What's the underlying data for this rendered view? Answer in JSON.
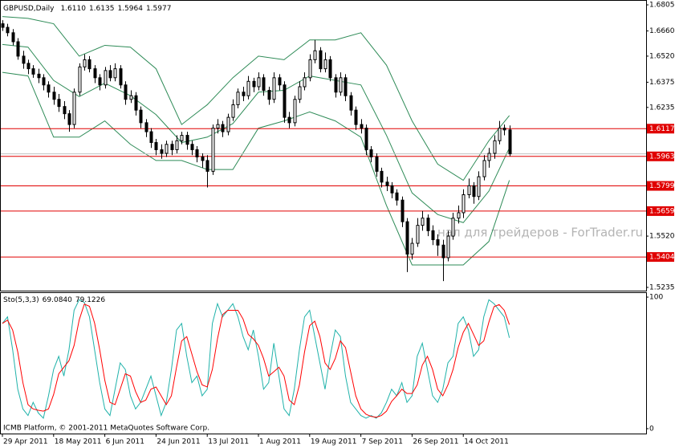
{
  "chart_data": {
    "type": "candlestick",
    "title": "GBPUSD,Daily",
    "last_bar_labels": [
      "1.6110",
      "1.6135",
      "1.5964",
      "1.5977"
    ],
    "bull_color": "#ffffff",
    "bear_color": "#000000",
    "outline_color": "#000000",
    "bid_line_color": "#c0c0c0",
    "xlim": [
      -0.47,
      125.7
    ],
    "xticks": [
      {
        "value": 0,
        "label": "29 Apr 2011"
      },
      {
        "value": 10,
        "label": "18 May 2011"
      },
      {
        "value": 20,
        "label": "6 Jun 2011"
      },
      {
        "value": 30,
        "label": "24 Jun 2011"
      },
      {
        "value": 40,
        "label": "13 Jul 2011"
      },
      {
        "value": 50,
        "label": "1 Aug 2011"
      },
      {
        "value": 60,
        "label": "19 Aug 2011"
      },
      {
        "value": 70,
        "label": "7 Sep 2011"
      },
      {
        "value": 80,
        "label": "26 Sep 2011"
      },
      {
        "value": 90,
        "label": "14 Oct 2011"
      }
    ],
    "ylim": [
      1.5217,
      1.6823
    ],
    "yticks": [
      {
        "value": 1.6805,
        "label": "1.6805"
      },
      {
        "value": 1.666,
        "label": "1.6660"
      },
      {
        "value": 1.652,
        "label": "1.6520"
      },
      {
        "value": 1.6375,
        "label": "1.6375"
      },
      {
        "value": 1.6235,
        "label": "1.6235"
      },
      {
        "value": 1.552,
        "label": "1.5520"
      },
      {
        "value": 1.5235,
        "label": "1.5235"
      }
    ],
    "levels": {
      "color": "#e00000",
      "label_text_color": "#ffffff",
      "items": [
        {
          "value": 1.6117,
          "label": "1.6117"
        },
        {
          "value": 1.5963,
          "label": "1.5963"
        },
        {
          "value": 1.5799,
          "label": "1.5799"
        },
        {
          "value": 1.5659,
          "label": "1.5659"
        },
        {
          "value": 1.5404,
          "label": "1.5404"
        }
      ]
    },
    "candles": [
      [
        1.67,
        1.672,
        1.666,
        1.668
      ],
      [
        1.668,
        1.67,
        1.663,
        1.665
      ],
      [
        1.665,
        1.667,
        1.658,
        1.66
      ],
      [
        1.66,
        1.662,
        1.65,
        1.652
      ],
      [
        1.652,
        1.655,
        1.645,
        1.648
      ],
      [
        1.648,
        1.65,
        1.642,
        1.645
      ],
      [
        1.645,
        1.647,
        1.64,
        1.642
      ],
      [
        1.642,
        1.645,
        1.637,
        1.64
      ],
      [
        1.64,
        1.642,
        1.633,
        1.636
      ],
      [
        1.636,
        1.638,
        1.629,
        1.632
      ],
      [
        1.632,
        1.635,
        1.625,
        1.628
      ],
      [
        1.628,
        1.631,
        1.621,
        1.624
      ],
      [
        1.624,
        1.627,
        1.617,
        1.62
      ],
      [
        1.62,
        1.622,
        1.61,
        1.614
      ],
      [
        1.614,
        1.634,
        1.612,
        1.632
      ],
      [
        1.632,
        1.648,
        1.63,
        1.646
      ],
      [
        1.646,
        1.653,
        1.644,
        1.65
      ],
      [
        1.65,
        1.652,
        1.643,
        1.645
      ],
      [
        1.645,
        1.647,
        1.637,
        1.64
      ],
      [
        1.64,
        1.642,
        1.633,
        1.636
      ],
      [
        1.636,
        1.646,
        1.634,
        1.644
      ],
      [
        1.644,
        1.647,
        1.638,
        1.64
      ],
      [
        1.64,
        1.648,
        1.638,
        1.645
      ],
      [
        1.645,
        1.647,
        1.634,
        1.636
      ],
      [
        1.636,
        1.638,
        1.625,
        1.628
      ],
      [
        1.628,
        1.633,
        1.626,
        1.63
      ],
      [
        1.63,
        1.632,
        1.619,
        1.622
      ],
      [
        1.622,
        1.624,
        1.612,
        1.615
      ],
      [
        1.615,
        1.617,
        1.607,
        1.61
      ],
      [
        1.61,
        1.612,
        1.601,
        1.604
      ],
      [
        1.604,
        1.606,
        1.597,
        1.6
      ],
      [
        1.6,
        1.603,
        1.595,
        1.598
      ],
      [
        1.598,
        1.605,
        1.596,
        1.603
      ],
      [
        1.603,
        1.605,
        1.597,
        1.6
      ],
      [
        1.6,
        1.608,
        1.598,
        1.605
      ],
      [
        1.605,
        1.61,
        1.603,
        1.608
      ],
      [
        1.608,
        1.61,
        1.6,
        1.603
      ],
      [
        1.603,
        1.605,
        1.597,
        1.6
      ],
      [
        1.6,
        1.602,
        1.593,
        1.596
      ],
      [
        1.596,
        1.598,
        1.59,
        1.594
      ],
      [
        1.594,
        1.597,
        1.579,
        1.588
      ],
      [
        1.588,
        1.614,
        1.586,
        1.612
      ],
      [
        1.612,
        1.617,
        1.609,
        1.614
      ],
      [
        1.614,
        1.616,
        1.607,
        1.61
      ],
      [
        1.61,
        1.62,
        1.608,
        1.618
      ],
      [
        1.618,
        1.628,
        1.616,
        1.625
      ],
      [
        1.625,
        1.634,
        1.623,
        1.632
      ],
      [
        1.632,
        1.635,
        1.627,
        1.63
      ],
      [
        1.63,
        1.641,
        1.628,
        1.638
      ],
      [
        1.638,
        1.64,
        1.632,
        1.635
      ],
      [
        1.635,
        1.643,
        1.633,
        1.64
      ],
      [
        1.64,
        1.642,
        1.63,
        1.633
      ],
      [
        1.633,
        1.635,
        1.625,
        1.628
      ],
      [
        1.628,
        1.643,
        1.626,
        1.64
      ],
      [
        1.64,
        1.642,
        1.633,
        1.636
      ],
      [
        1.636,
        1.638,
        1.615,
        1.618
      ],
      [
        1.618,
        1.621,
        1.612,
        1.615
      ],
      [
        1.615,
        1.63,
        1.613,
        1.628
      ],
      [
        1.628,
        1.638,
        1.626,
        1.635
      ],
      [
        1.635,
        1.643,
        1.633,
        1.64
      ],
      [
        1.64,
        1.653,
        1.638,
        1.65
      ],
      [
        1.65,
        1.661,
        1.648,
        1.655
      ],
      [
        1.655,
        1.657,
        1.643,
        1.645
      ],
      [
        1.645,
        1.654,
        1.643,
        1.65
      ],
      [
        1.65,
        1.652,
        1.638,
        1.64
      ],
      [
        1.64,
        1.642,
        1.629,
        1.632
      ],
      [
        1.632,
        1.643,
        1.63,
        1.64
      ],
      [
        1.64,
        1.642,
        1.627,
        1.63
      ],
      [
        1.63,
        1.632,
        1.619,
        1.622
      ],
      [
        1.622,
        1.624,
        1.611,
        1.614
      ],
      [
        1.614,
        1.617,
        1.609,
        1.612
      ],
      [
        1.612,
        1.614,
        1.597,
        1.6
      ],
      [
        1.6,
        1.602,
        1.593,
        1.596
      ],
      [
        1.596,
        1.598,
        1.585,
        1.588
      ],
      [
        1.588,
        1.59,
        1.579,
        1.582
      ],
      [
        1.582,
        1.585,
        1.577,
        1.58
      ],
      [
        1.58,
        1.582,
        1.573,
        1.576
      ],
      [
        1.576,
        1.578,
        1.569,
        1.572
      ],
      [
        1.572,
        1.574,
        1.557,
        1.56
      ],
      [
        1.56,
        1.562,
        1.532,
        1.542
      ],
      [
        1.542,
        1.551,
        1.539,
        1.548
      ],
      [
        1.548,
        1.562,
        1.546,
        1.558
      ],
      [
        1.558,
        1.566,
        1.555,
        1.562
      ],
      [
        1.562,
        1.564,
        1.552,
        1.555
      ],
      [
        1.555,
        1.558,
        1.547,
        1.55
      ],
      [
        1.55,
        1.553,
        1.541,
        1.547
      ],
      [
        1.547,
        1.55,
        1.527,
        1.54
      ],
      [
        1.54,
        1.555,
        1.538,
        1.552
      ],
      [
        1.552,
        1.565,
        1.55,
        1.562
      ],
      [
        1.562,
        1.569,
        1.559,
        1.565
      ],
      [
        1.565,
        1.578,
        1.562,
        1.575
      ],
      [
        1.575,
        1.584,
        1.573,
        1.58
      ],
      [
        1.58,
        1.582,
        1.57,
        1.574
      ],
      [
        1.574,
        1.588,
        1.572,
        1.585
      ],
      [
        1.585,
        1.597,
        1.583,
        1.594
      ],
      [
        1.594,
        1.601,
        1.59,
        1.598
      ],
      [
        1.598,
        1.608,
        1.595,
        1.605
      ],
      [
        1.605,
        1.616,
        1.603,
        1.612
      ],
      [
        1.612,
        1.614,
        1.608,
        1.611
      ],
      [
        1.611,
        1.6135,
        1.5964,
        1.5977
      ]
    ],
    "bands": {
      "color": "#2e8b57",
      "x": [
        0,
        5,
        10,
        15,
        20,
        25,
        30,
        35,
        40,
        45,
        50,
        55,
        60,
        65,
        70,
        75,
        80,
        85,
        90,
        95,
        99
      ],
      "upper": [
        1.674,
        1.673,
        1.67,
        1.652,
        1.658,
        1.657,
        1.645,
        1.614,
        1.625,
        1.64,
        1.652,
        1.65,
        1.661,
        1.661,
        1.665,
        1.647,
        1.616,
        1.592,
        1.583,
        1.605,
        1.619
      ],
      "middle": [
        1.6585,
        1.657,
        1.6385,
        1.6295,
        1.637,
        1.63,
        1.6195,
        1.604,
        1.607,
        1.6145,
        1.632,
        1.633,
        1.641,
        1.6385,
        1.636,
        1.608,
        1.576,
        1.564,
        1.5595,
        1.577,
        1.601
      ],
      "lower": [
        1.643,
        1.641,
        1.607,
        1.607,
        1.616,
        1.603,
        1.594,
        1.594,
        1.589,
        1.589,
        1.612,
        1.616,
        1.621,
        1.616,
        1.607,
        1.569,
        1.536,
        1.536,
        1.536,
        1.549,
        1.583
      ]
    },
    "watermark": "нал для трейдеров - ForTrader.ru",
    "footer": "ICMB Platform, © 2001-2011 MetaQuotes Software Corp.",
    "stochastic": {
      "type": "line",
      "title": "Sto(5,3,3)",
      "ylim": [
        -3.7,
        103.7
      ],
      "yticks": [
        0,
        100
      ],
      "k": {
        "color": "#20b2aa",
        "last_label": "69.0840",
        "values": [
          80,
          85,
          60,
          30,
          15,
          10,
          20,
          12,
          8,
          25,
          45,
          55,
          40,
          60,
          90,
          98,
          96,
          85,
          60,
          35,
          15,
          10,
          30,
          50,
          45,
          25,
          15,
          20,
          30,
          40,
          25,
          10,
          20,
          45,
          75,
          80,
          55,
          35,
          40,
          25,
          30,
          80,
          95,
          85,
          90,
          95,
          85,
          70,
          60,
          75,
          55,
          30,
          35,
          65,
          40,
          15,
          10,
          30,
          60,
          85,
          90,
          70,
          50,
          30,
          55,
          75,
          70,
          40,
          20,
          15,
          10,
          8,
          10,
          8,
          12,
          20,
          30,
          25,
          35,
          20,
          25,
          55,
          65,
          45,
          25,
          20,
          30,
          50,
          55,
          80,
          85,
          75,
          55,
          60,
          85,
          98,
          95,
          90,
          85,
          69.084
        ]
      },
      "d": {
        "color": "#ff0000",
        "last_label": "79.1226",
        "values": [
          80,
          82.5,
          75,
          58.3,
          35,
          18.3,
          15,
          14,
          13.3,
          15,
          26,
          41.7,
          46.7,
          51.7,
          63.3,
          82.7,
          94.7,
          93,
          80.3,
          60,
          36.7,
          20,
          18.3,
          30,
          41.7,
          40,
          28.3,
          20,
          21.7,
          30,
          31.7,
          25,
          18.3,
          25,
          46.7,
          66.7,
          70,
          56.7,
          43.3,
          33.3,
          31.7,
          45,
          68.3,
          86.7,
          90,
          90,
          90,
          83.3,
          71.7,
          68.3,
          63.3,
          53.3,
          40,
          43.3,
          46.7,
          40,
          21.7,
          18.3,
          33.3,
          58.3,
          78.3,
          81.7,
          70,
          50,
          45,
          53.3,
          66.7,
          61.7,
          43.3,
          25,
          15,
          11,
          9.3,
          8.7,
          10,
          13.3,
          20.7,
          25,
          30,
          26.7,
          26.7,
          33.3,
          48.3,
          55,
          45,
          30,
          25,
          33.3,
          45,
          61.7,
          73.3,
          80,
          71.7,
          63.3,
          66.7,
          81,
          92.7,
          94.3,
          90,
          79.1226
        ]
      }
    }
  }
}
